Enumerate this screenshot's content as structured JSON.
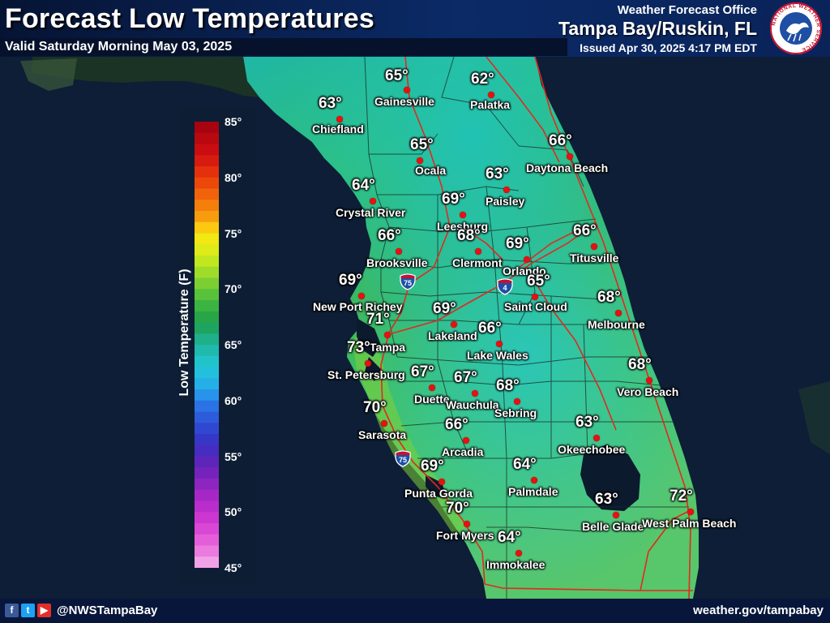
{
  "header": {
    "title": "Forecast Low Temperatures",
    "valid": "Valid Saturday Morning May 03, 2025",
    "wfo_label": "Weather Forecast Office",
    "office": "Tampa Bay/Ruskin, FL",
    "issued": "Issued Apr 30, 2025 4:17 PM EDT"
  },
  "logo": {
    "icon": "nws-logo-icon",
    "text": "NATIONAL WEATHER SERVICE"
  },
  "legend": {
    "title": "Low Temperature (F)",
    "ticks": [
      "85°",
      "80°",
      "75°",
      "70°",
      "65°",
      "60°",
      "55°",
      "50°",
      "45°"
    ],
    "tick_values": [
      85,
      80,
      75,
      70,
      65,
      60,
      55,
      50,
      45
    ],
    "min": 45,
    "max": 85
  },
  "highways": [
    {
      "number": "75"
    },
    {
      "number": "4"
    },
    {
      "number": "75"
    }
  ],
  "cities": [
    {
      "name": "Gainesville",
      "temp": "65°"
    },
    {
      "name": "Palatka",
      "temp": "62°"
    },
    {
      "name": "Chiefland",
      "temp": "63°"
    },
    {
      "name": "Ocala",
      "temp": "65°"
    },
    {
      "name": "Daytona Beach",
      "temp": "66°"
    },
    {
      "name": "Paisley",
      "temp": "63°"
    },
    {
      "name": "Crystal River",
      "temp": "64°"
    },
    {
      "name": "Leesburg",
      "temp": "69°"
    },
    {
      "name": "Brooksville",
      "temp": "66°"
    },
    {
      "name": "Clermont",
      "temp": "68°"
    },
    {
      "name": "Orlando",
      "temp": "69°"
    },
    {
      "name": "Titusville",
      "temp": "66°"
    },
    {
      "name": "New Port Richey",
      "temp": "69°"
    },
    {
      "name": "Saint Cloud",
      "temp": "65°"
    },
    {
      "name": "Melbourne",
      "temp": "68°"
    },
    {
      "name": "Lakeland",
      "temp": "69°"
    },
    {
      "name": "Tampa",
      "temp": "71°"
    },
    {
      "name": "Lake Wales",
      "temp": "66°"
    },
    {
      "name": "St. Petersburg",
      "temp": "73°"
    },
    {
      "name": "Duette",
      "temp": "67°"
    },
    {
      "name": "Wauchula",
      "temp": "67°"
    },
    {
      "name": "Vero Beach",
      "temp": "68°"
    },
    {
      "name": "Sebring",
      "temp": "68°"
    },
    {
      "name": "Sarasota",
      "temp": "70°"
    },
    {
      "name": "Arcadia",
      "temp": "66°"
    },
    {
      "name": "Okeechobee",
      "temp": "63°"
    },
    {
      "name": "Punta Gorda",
      "temp": "69°"
    },
    {
      "name": "Palmdale",
      "temp": "64°"
    },
    {
      "name": "Fort Myers",
      "temp": "70°"
    },
    {
      "name": "Belle Glade",
      "temp": "63°"
    },
    {
      "name": "West Palm Beach",
      "temp": "72°"
    },
    {
      "name": "Immokalee",
      "temp": "64°"
    }
  ],
  "footer": {
    "social_icons": [
      "facebook-icon",
      "twitter-icon",
      "youtube-icon"
    ],
    "handle": "@NWSTampaBay",
    "url": "weather.gov/tampabay"
  },
  "colors": {
    "header_bg": "#0b2a66",
    "dot": "#e81010",
    "road": "#e02a1e",
    "water": "#0c1a2e"
  }
}
